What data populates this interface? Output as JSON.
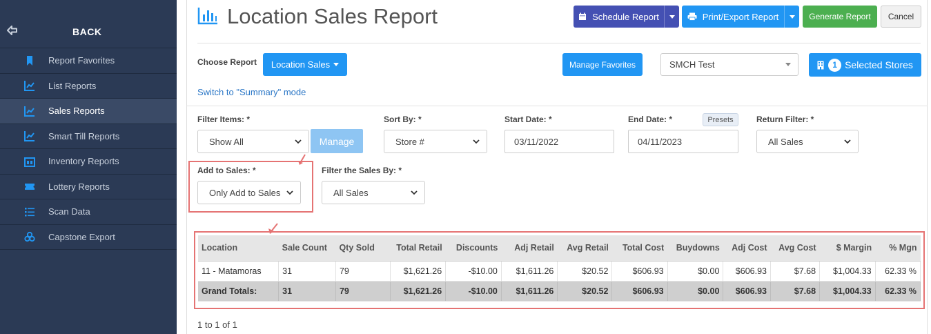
{
  "sidebar": {
    "back_label": "BACK",
    "items": [
      {
        "label": "Report Favorites",
        "icon": "bookmark-icon"
      },
      {
        "label": "List Reports",
        "icon": "line-chart-icon"
      },
      {
        "label": "Sales Reports",
        "icon": "line-chart-icon",
        "active": true
      },
      {
        "label": "Smart Till Reports",
        "icon": "line-chart-icon"
      },
      {
        "label": "Inventory Reports",
        "icon": "inventory-icon"
      },
      {
        "label": "Lottery Reports",
        "icon": "ticket-icon"
      },
      {
        "label": "Scan Data",
        "icon": "list-icon"
      },
      {
        "label": "Capstone Export",
        "icon": "boxes-icon"
      }
    ]
  },
  "header": {
    "title": "Location Sales Report",
    "schedule_label": "Schedule Report",
    "print_label": "Print/Export Report",
    "generate_label": "Generate Report",
    "cancel_label": "Cancel"
  },
  "report_select": {
    "choose_label": "Choose Report",
    "choose_value": "Location Sales",
    "manage_favorites_label": "Manage Favorites",
    "store_group_value": "SMCH Test",
    "selected_count": "1",
    "selected_label": "Selected Stores",
    "mode_link": "Switch to \"Summary\" mode"
  },
  "filters": {
    "filter_items_label": "Filter Items: *",
    "filter_items_value": "Show All",
    "manage_label": "Manage",
    "sort_by_label": "Sort By: *",
    "sort_by_value": "Store #",
    "start_date_label": "Start Date: *",
    "start_date_value": "03/11/2022",
    "end_date_label": "End Date: *",
    "end_date_value": "04/11/2023",
    "presets_label": "Presets",
    "return_filter_label": "Return Filter: *",
    "return_filter_value": "All Sales",
    "add_to_sales_label": "Add to Sales: *",
    "add_to_sales_value": "Only Add to Sales",
    "filter_sales_by_label": "Filter the Sales By: *",
    "filter_sales_by_value": "All Sales"
  },
  "table": {
    "columns": [
      "Location",
      "Sale Count",
      "Qty Sold",
      "Total Retail",
      "Discounts",
      "Adj Retail",
      "Avg Retail",
      "Total Cost",
      "Buydowns",
      "Adj Cost",
      "Avg Cost",
      "$ Margin",
      "% Mgn"
    ],
    "rows": [
      [
        "11 - Matamoras",
        "31",
        "79",
        "$1,621.26",
        "-$10.00",
        "$1,611.26",
        "$20.52",
        "$606.93",
        "$0.00",
        "$606.93",
        "$7.68",
        "$1,004.33",
        "62.33 %"
      ]
    ],
    "totals": [
      "Grand Totals:",
      "31",
      "79",
      "$1,621.26",
      "-$10.00",
      "$1,611.26",
      "$20.52",
      "$606.93",
      "$0.00",
      "$606.93",
      "$7.68",
      "$1,004.33",
      "62.33 %"
    ]
  },
  "pager": "1 to 1 of 1",
  "colors": {
    "sidebar_bg": "#2b3a55",
    "primary": "#2196f3",
    "schedule": "#4450b3",
    "generate": "#4caf50",
    "highlight": "#e57373"
  }
}
